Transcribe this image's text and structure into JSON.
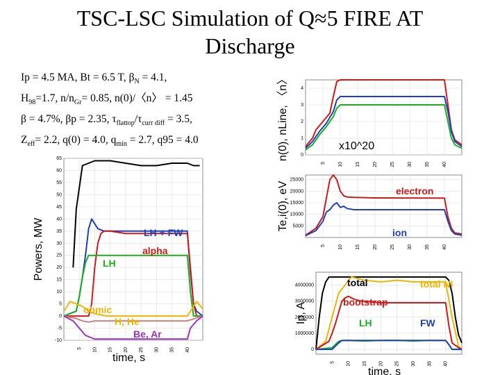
{
  "title_line1": "TSC-LSC Simulation of Q≈5 FIRE AT",
  "title_line2": "Discharge",
  "params": {
    "l1": {
      "a": "Ip = 4.5 MA, Bt = 6.5 T, ",
      "b": "β",
      "c": "N",
      "d": " = 4.1,"
    },
    "l2": {
      "a": "H",
      "b": "98",
      "c": "=1.7, n/n",
      "d": "Gr",
      "e": "= 0.85, n(0)/〈n〉 = 1.45"
    },
    "l3": {
      "a": "β = 4.7%, βp = 2.35, τ",
      "b": "flattop",
      "c": "/τ",
      "d": "curr diff",
      "e": " = 3.5,"
    },
    "l4": {
      "a": "Z",
      "b": "eff",
      "c": "= 2.2, q(0) = 4.0, q",
      "d": "min",
      "e": " = 2.7, q95 = 4.0"
    }
  },
  "chart_data": [
    {
      "type": "line",
      "ylabel": "Powers, MW",
      "xlabel": "time, s",
      "xlim": [
        0,
        45
      ],
      "ylim": [
        -10,
        65
      ],
      "x_ticks": [
        "5",
        "10",
        "15",
        "20",
        "25",
        "30",
        "35",
        "40"
      ],
      "y_ticks": [
        "-10",
        "-5",
        "0",
        "5",
        "10",
        "15",
        "20",
        "25",
        "30",
        "35",
        "40",
        "45",
        "50",
        "55",
        "60",
        "65"
      ],
      "annotations": [
        "LH + FW",
        "alpha",
        "LH",
        "ohmic",
        "H, He",
        "Be, Ar"
      ],
      "series": [
        {
          "name": "LH + FW",
          "color": "#1c3fbf",
          "x": [
            0,
            4,
            5,
            6,
            7,
            8,
            9,
            10,
            11,
            13,
            15,
            40,
            41,
            42,
            43,
            45
          ],
          "y": [
            0,
            2,
            8,
            16,
            25,
            36,
            40,
            38,
            36,
            35,
            35,
            35,
            18,
            5,
            2,
            0
          ]
        },
        {
          "name": "alpha",
          "color": "#d01818",
          "x": [
            0,
            8,
            9,
            10,
            11,
            12,
            13,
            15,
            20,
            40,
            41,
            42,
            43,
            45
          ],
          "y": [
            0,
            0,
            5,
            20,
            30,
            34,
            35,
            35,
            34,
            34,
            20,
            5,
            0,
            0
          ]
        },
        {
          "name": "LH",
          "color": "#18b018",
          "x": [
            0,
            4,
            5,
            6,
            7,
            8,
            9,
            10,
            40,
            41,
            42,
            45
          ],
          "y": [
            0,
            2,
            8,
            16,
            22,
            25,
            25,
            25,
            25,
            10,
            0,
            0
          ]
        },
        {
          "name": "ohmic",
          "color": "#f0b400",
          "x": [
            0,
            2,
            4,
            6,
            8,
            10,
            12,
            14,
            40,
            42,
            43,
            45
          ],
          "y": [
            2,
            6,
            5,
            4,
            2,
            1,
            0.5,
            0,
            0,
            4,
            6,
            3
          ]
        },
        {
          "name": "H, He",
          "color": "#d08080",
          "x": [
            0,
            4,
            6,
            8,
            10,
            15,
            20,
            25,
            30,
            35,
            40,
            45
          ],
          "y": [
            0,
            -1,
            -2,
            -2.5,
            -2,
            -2,
            -2,
            -2,
            -2,
            -2,
            -2,
            0
          ]
        },
        {
          "name": "Be, Ar",
          "color": "#9b30c0",
          "x": [
            0,
            3,
            5,
            7,
            9,
            10,
            11,
            40,
            41,
            43,
            45
          ],
          "y": [
            0,
            -2,
            -5,
            -8,
            -9,
            -9.5,
            -9.5,
            -9.5,
            -5,
            -2,
            0
          ]
        },
        {
          "name": "",
          "color": "#000000",
          "x": [
            3,
            4,
            6,
            8,
            10,
            15,
            20,
            25,
            30,
            35,
            40,
            42,
            44
          ],
          "y": [
            20,
            44,
            62,
            63,
            64,
            64,
            63,
            62,
            62,
            63,
            63,
            62,
            62
          ]
        }
      ]
    },
    {
      "type": "line",
      "ylabel": "n(0), nLine, 〈n〉",
      "xlabel": "x10^20",
      "xlim": [
        0,
        45
      ],
      "ylim": [
        0,
        4.5
      ],
      "x_ticks": [
        "5",
        "10",
        "15",
        "20",
        "25",
        "30",
        "35",
        "40"
      ],
      "y_ticks": [
        "0",
        "1",
        "2",
        "3",
        "4"
      ],
      "series": [
        {
          "name": "n(0)",
          "color": "#d01818",
          "x": [
            0,
            2,
            3,
            5,
            7,
            8,
            9,
            10,
            40,
            41,
            42,
            43,
            45
          ],
          "y": [
            0.5,
            1.0,
            1.5,
            2.0,
            2.5,
            3.5,
            4.4,
            4.5,
            4.5,
            3.0,
            1.5,
            0.9,
            0.6
          ]
        },
        {
          "name": "nLine",
          "color": "#1c3fbf",
          "x": [
            0,
            2,
            4,
            6,
            8,
            9,
            10,
            40,
            41,
            42,
            43,
            45
          ],
          "y": [
            0.4,
            0.8,
            1.4,
            1.9,
            2.6,
            3.3,
            3.5,
            3.5,
            2.6,
            1.4,
            0.8,
            0.5
          ]
        },
        {
          "name": "〈n〉",
          "color": "#18b018",
          "x": [
            0,
            2,
            4,
            6,
            8,
            9,
            10,
            40,
            41,
            42,
            43,
            45
          ],
          "y": [
            0.3,
            0.6,
            1.2,
            1.7,
            2.3,
            2.8,
            3.0,
            3.0,
            2.0,
            1.0,
            0.6,
            0.4
          ]
        }
      ]
    },
    {
      "type": "line",
      "ylabel": "Te,i(0), eV",
      "xlim": [
        0,
        45
      ],
      "ylim": [
        0,
        27000
      ],
      "x_ticks": [
        "5",
        "10",
        "15",
        "20",
        "25",
        "30",
        "35",
        "40"
      ],
      "y_ticks": [
        "5000",
        "10000",
        "15000",
        "20000",
        "25000"
      ],
      "annotations": [
        "electron",
        "ion"
      ],
      "series": [
        {
          "name": "electron",
          "color": "#d01818",
          "x": [
            0,
            3,
            5,
            6,
            7,
            8,
            9,
            10,
            11,
            12,
            14,
            20,
            40,
            41,
            42,
            43,
            45
          ],
          "y": [
            1000,
            4000,
            9000,
            17000,
            25000,
            27000,
            25000,
            20000,
            18000,
            17500,
            17300,
            17100,
            17000,
            9000,
            4000,
            2000,
            1500
          ]
        },
        {
          "name": "ion",
          "color": "#1c3fbf",
          "x": [
            0,
            3,
            5,
            6,
            7,
            8,
            9,
            10,
            11,
            12,
            14,
            20,
            40,
            41,
            42,
            43,
            45
          ],
          "y": [
            800,
            3000,
            7000,
            11000,
            12000,
            14000,
            15000,
            13000,
            13500,
            12500,
            12000,
            12000,
            12000,
            7000,
            3000,
            1500,
            1000
          ]
        }
      ]
    },
    {
      "type": "line",
      "ylabel": "Ip, A",
      "xlabel": "time, s",
      "xlim": [
        0,
        45
      ],
      "ylim": [
        -300000,
        4800000
      ],
      "x_ticks": [
        "5",
        "10",
        "15",
        "20",
        "25",
        "30",
        "35",
        "40"
      ],
      "y_ticks": [
        "0",
        "1000000",
        "2000000",
        "3000000",
        "4000000"
      ],
      "annotations": [
        "total",
        "total NI",
        "bootstrap",
        "LH",
        "FW"
      ],
      "series": [
        {
          "name": "total",
          "color": "#000000",
          "x": [
            0,
            1,
            2,
            3,
            4,
            5,
            40,
            41,
            42,
            43,
            44,
            45
          ],
          "y": [
            0,
            2000000,
            3500000,
            4200000,
            4500000,
            4500000,
            4500000,
            4300000,
            3500000,
            2000000,
            900000,
            400000
          ]
        },
        {
          "name": "total NI",
          "color": "#f0b400",
          "x": [
            0,
            3,
            5,
            7,
            9,
            10,
            11,
            15,
            20,
            25,
            30,
            35,
            40,
            42,
            44,
            45
          ],
          "y": [
            0,
            500000,
            2000000,
            3500000,
            4000000,
            4300000,
            4500000,
            4300000,
            4200000,
            4300000,
            4200000,
            4200000,
            4200000,
            2000000,
            200000,
            0
          ]
        },
        {
          "name": "bootstrap",
          "color": "#d01818",
          "x": [
            0,
            4,
            5,
            6,
            7,
            8,
            9,
            10,
            11,
            12,
            14,
            20,
            40,
            41,
            42,
            44,
            45
          ],
          "y": [
            0,
            500000,
            1000000,
            1600000,
            2300000,
            3000000,
            3200000,
            3300000,
            3200000,
            3100000,
            3000000,
            2900000,
            2900000,
            1500000,
            400000,
            100000,
            0
          ]
        },
        {
          "name": "LH",
          "color": "#18b018",
          "x": [
            0,
            5,
            6,
            7,
            8,
            10,
            15,
            20,
            25,
            30,
            35,
            40,
            41,
            42,
            45
          ],
          "y": [
            0,
            100000,
            300000,
            500000,
            550000,
            550000,
            520000,
            550000,
            560000,
            520000,
            550000,
            550000,
            300000,
            0,
            0
          ]
        },
        {
          "name": "FW",
          "color": "#1c3fbf",
          "x": [
            0,
            5,
            7,
            8,
            10,
            40,
            41,
            42,
            45
          ],
          "y": [
            0,
            0,
            400000,
            550000,
            550000,
            550000,
            300000,
            0,
            0
          ]
        }
      ]
    }
  ]
}
